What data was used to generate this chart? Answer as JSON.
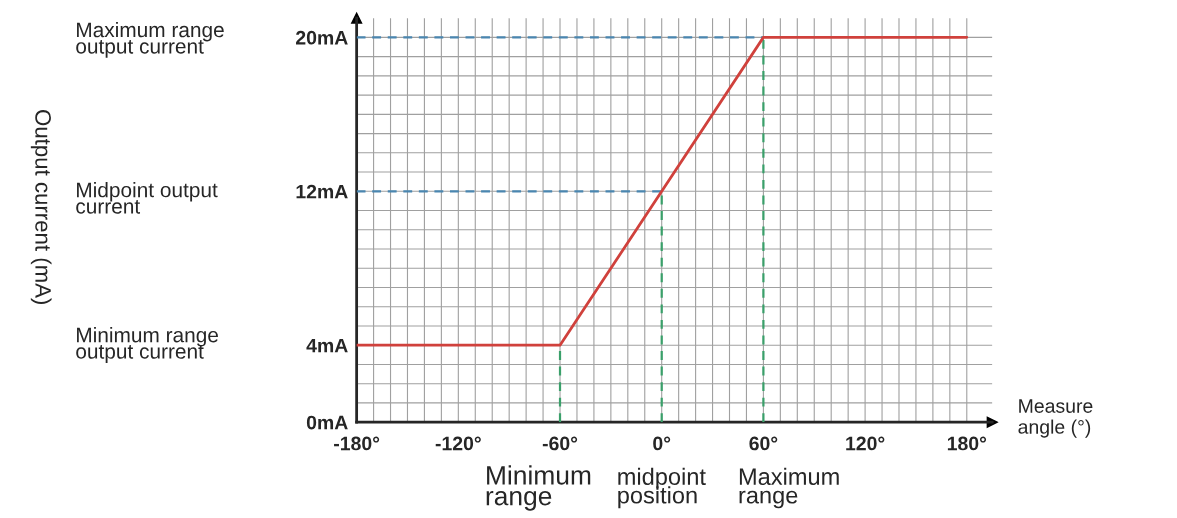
{
  "chart_data": {
    "type": "line",
    "xlabel": "Measure\nangle (°)",
    "x": [
      -180,
      -60,
      60,
      180
    ],
    "series": [
      {
        "color": "#d0413c",
        "values": [
          4,
          4,
          20,
          20
        ]
      }
    ],
    "xlim": [
      -180,
      195
    ],
    "ylim": [
      0,
      21
    ],
    "xticks": [
      {
        "value": -180,
        "label": "-180°"
      },
      {
        "value": -170,
        "label": null
      },
      {
        "value": -160,
        "label": null
      },
      {
        "value": -150,
        "label": null
      },
      {
        "value": -140,
        "label": null
      },
      {
        "value": -130,
        "label": null
      },
      {
        "value": -120,
        "label": "-120°"
      },
      {
        "value": -110,
        "label": null
      },
      {
        "value": -100,
        "label": null
      },
      {
        "value": -90,
        "label": null
      },
      {
        "value": -80,
        "label": null
      },
      {
        "value": -70,
        "label": null
      },
      {
        "value": -60,
        "label": "-60°"
      },
      {
        "value": -50,
        "label": null
      },
      {
        "value": -40,
        "label": null
      },
      {
        "value": -30,
        "label": null
      },
      {
        "value": -20,
        "label": null
      },
      {
        "value": -10,
        "label": null
      },
      {
        "value": 0,
        "label": "0°"
      },
      {
        "value": 10,
        "label": null
      },
      {
        "value": 20,
        "label": null
      },
      {
        "value": 30,
        "label": null
      },
      {
        "value": 40,
        "label": null
      },
      {
        "value": 50,
        "label": null
      },
      {
        "value": 60,
        "label": "60°"
      },
      {
        "value": 70,
        "label": null
      },
      {
        "value": 80,
        "label": null
      },
      {
        "value": 90,
        "label": null
      },
      {
        "value": 100,
        "label": null
      },
      {
        "value": 110,
        "label": null
      },
      {
        "value": 120,
        "label": "120°"
      },
      {
        "value": 130,
        "label": null
      },
      {
        "value": 140,
        "label": null
      },
      {
        "value": 150,
        "label": null
      },
      {
        "value": 160,
        "label": null
      },
      {
        "value": 170,
        "label": null
      },
      {
        "value": 180,
        "label": "180°"
      }
    ],
    "yticks": [
      {
        "value": 0,
        "label": "0mA"
      },
      {
        "value": 1,
        "label": null
      },
      {
        "value": 2,
        "label": null
      },
      {
        "value": 3,
        "label": null
      },
      {
        "value": 4,
        "label": "4mA"
      },
      {
        "value": 5,
        "label": null
      },
      {
        "value": 6,
        "label": null
      },
      {
        "value": 7,
        "label": null
      },
      {
        "value": 8,
        "label": null
      },
      {
        "value": 9,
        "label": null
      },
      {
        "value": 10,
        "label": null
      },
      {
        "value": 11,
        "label": null
      },
      {
        "value": 12,
        "label": "12mA"
      },
      {
        "value": 13,
        "label": null
      },
      {
        "value": 14,
        "label": null
      },
      {
        "value": 15,
        "label": null
      },
      {
        "value": 16,
        "label": null
      },
      {
        "value": 17,
        "label": null
      },
      {
        "value": 18,
        "label": null
      },
      {
        "value": 19,
        "label": null
      },
      {
        "value": 20,
        "label": "20mA"
      }
    ],
    "grid": true,
    "ref_lines": [
      {
        "axis": "y",
        "value": 20,
        "color": "#4a86b0",
        "line_style": "dashed"
      },
      {
        "axis": "y",
        "value": 12,
        "color": "#4a86b0",
        "line_style": "dashed"
      },
      {
        "axis": "x",
        "value": -60,
        "color": "#3aa06a",
        "line_style": "dashed"
      },
      {
        "axis": "x",
        "value": 0,
        "color": "#3aa06a",
        "line_style": "dashed"
      },
      {
        "axis": "x",
        "value": 60,
        "color": "#3aa06a",
        "line_style": "dashed"
      }
    ],
    "annotations": [
      "Maximum range\noutput current",
      "Midpoint output\ncurrent",
      "Minimum range\noutput current",
      "Minimum\nrange",
      "midpoint\nposition",
      "Maximum\nrange",
      "Output current (mA)"
    ]
  }
}
